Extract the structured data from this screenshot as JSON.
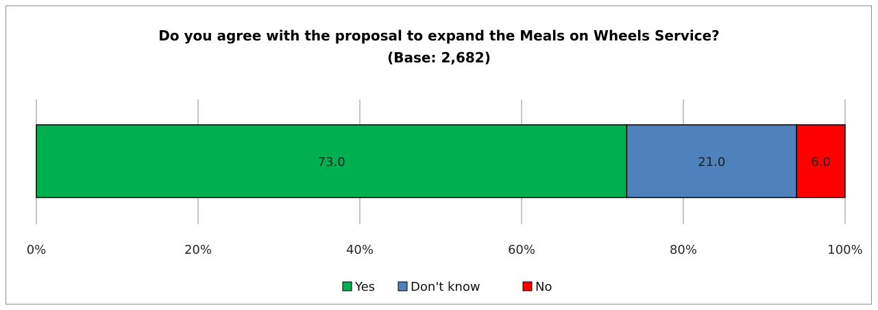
{
  "chart_data": {
    "type": "bar",
    "orientation": "horizontal",
    "stacked": true,
    "title": "Do you agree with the proposal to expand the Meals on Wheels Service?",
    "subtitle": "(Base: 2,682)",
    "xlim": [
      0,
      100
    ],
    "x_ticks": [
      "0%",
      "20%",
      "40%",
      "60%",
      "80%",
      "100%"
    ],
    "series": [
      {
        "name": "Yes",
        "values": [
          73.0
        ],
        "label": "73.0",
        "color": "#00b050"
      },
      {
        "name": "Don't know",
        "values": [
          21.0
        ],
        "label": "21.0",
        "color": "#4f81bd"
      },
      {
        "name": "No",
        "values": [
          6.0
        ],
        "label": "6.0",
        "color": "#ff0000"
      }
    ],
    "grid": true,
    "legend": "bottom"
  }
}
